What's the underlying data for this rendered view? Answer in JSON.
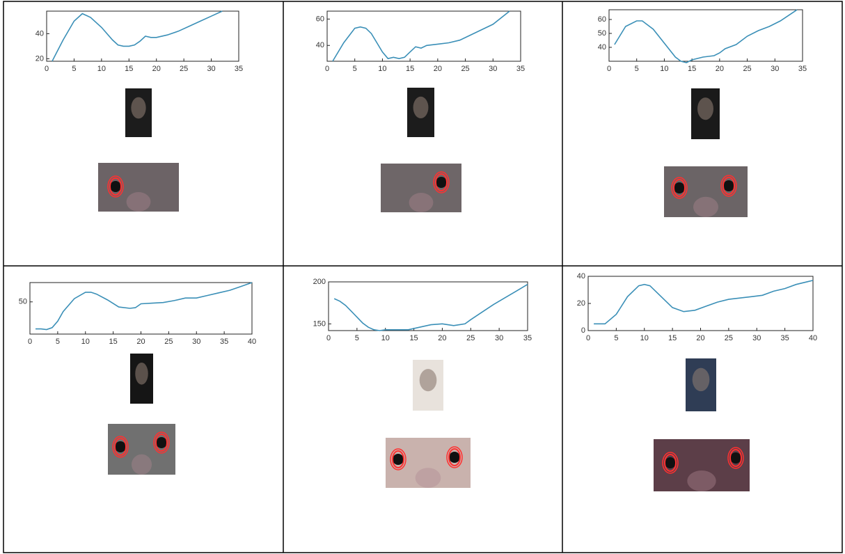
{
  "chart_data": [
    {
      "type": "line",
      "color": "#3a8fb7",
      "xlim": [
        0,
        35
      ],
      "xticks": [
        0,
        5,
        10,
        15,
        20,
        25,
        30,
        35
      ],
      "ylim": [
        18,
        58
      ],
      "yticks": [
        20,
        40
      ],
      "x": [
        1,
        3,
        5,
        6.5,
        8,
        10,
        12,
        13,
        14,
        15,
        16,
        17,
        18,
        19,
        20,
        22,
        24,
        26,
        28,
        30,
        32
      ],
      "values": [
        18,
        35,
        50,
        56,
        53,
        45,
        35,
        31,
        30,
        30,
        31,
        34,
        38,
        37,
        37,
        39,
        42,
        46,
        50,
        54,
        58
      ]
    },
    {
      "type": "line",
      "color": "#3a8fb7",
      "xlim": [
        0,
        35
      ],
      "xticks": [
        0,
        5,
        10,
        15,
        20,
        25,
        30,
        35
      ],
      "ylim": [
        28,
        66
      ],
      "yticks": [
        40,
        60
      ],
      "x": [
        1,
        3,
        5,
        6,
        7,
        8,
        9,
        10,
        11,
        12,
        13,
        14,
        15,
        16,
        17,
        18,
        20,
        22,
        24,
        26,
        28,
        30,
        33
      ],
      "values": [
        28,
        42,
        53,
        54,
        53,
        49,
        42,
        35,
        30,
        31,
        30,
        31,
        35,
        39,
        38,
        40,
        41,
        42,
        44,
        48,
        52,
        56,
        66
      ]
    },
    {
      "type": "line",
      "color": "#3a8fb7",
      "xlim": [
        0,
        35
      ],
      "xticks": [
        0,
        5,
        10,
        15,
        20,
        25,
        30,
        35
      ],
      "ylim": [
        30,
        67
      ],
      "yticks": [
        40,
        50,
        60
      ],
      "x": [
        1,
        3,
        5,
        6,
        8,
        10,
        12,
        13,
        14,
        15,
        17,
        19,
        20,
        21,
        23,
        25,
        27,
        29,
        31,
        34
      ],
      "values": [
        42,
        55,
        59,
        59,
        53,
        43,
        33,
        30,
        29,
        31,
        33,
        34,
        36,
        39,
        42,
        48,
        52,
        55,
        59,
        67
      ]
    },
    {
      "type": "line",
      "color": "#3a8fb7",
      "xlim": [
        0,
        40
      ],
      "xticks": [
        0,
        5,
        10,
        15,
        20,
        25,
        30,
        35,
        40
      ],
      "ylim": [
        0,
        80
      ],
      "yticks": [
        50
      ],
      "x": [
        1,
        2,
        3,
        4,
        5,
        6,
        8,
        10,
        11,
        12,
        14,
        16,
        18,
        19,
        20,
        22,
        24,
        26,
        28,
        30,
        32,
        34,
        36,
        38,
        40
      ],
      "values": [
        8,
        8,
        7,
        10,
        20,
        35,
        55,
        65,
        65,
        62,
        53,
        42,
        40,
        41,
        47,
        48,
        49,
        52,
        56,
        56,
        60,
        64,
        68,
        74,
        80
      ]
    },
    {
      "type": "line",
      "color": "#3a8fb7",
      "xlim": [
        0,
        35
      ],
      "xticks": [
        0,
        5,
        10,
        15,
        20,
        25,
        30,
        35
      ],
      "ylim": [
        142,
        200
      ],
      "yticks": [
        150,
        200
      ],
      "x": [
        1,
        2,
        3,
        4,
        5,
        6,
        7,
        8,
        9,
        10,
        12,
        14,
        16,
        18,
        20,
        21,
        22,
        23,
        24,
        25,
        27,
        29,
        31,
        33,
        35
      ],
      "values": [
        180,
        177,
        172,
        165,
        158,
        151,
        146,
        143,
        142,
        143,
        143,
        143,
        146,
        149,
        150,
        149,
        148,
        149,
        150,
        155,
        164,
        173,
        181,
        189,
        197
      ]
    },
    {
      "type": "line",
      "color": "#3a8fb7",
      "xlim": [
        0,
        40
      ],
      "xticks": [
        0,
        5,
        10,
        15,
        20,
        25,
        30,
        35,
        40
      ],
      "ylim": [
        0,
        40
      ],
      "yticks": [
        0,
        20,
        40
      ],
      "x": [
        1,
        2,
        3,
        5,
        7,
        9,
        10,
        11,
        13,
        15,
        17,
        19,
        21,
        23,
        25,
        27,
        29,
        31,
        33,
        35,
        37,
        39,
        40
      ],
      "values": [
        5,
        5,
        5,
        12,
        25,
        33,
        34,
        33,
        25,
        17,
        14,
        15,
        18,
        21,
        23,
        24,
        25,
        26,
        29,
        31,
        34,
        36,
        37
      ]
    }
  ]
}
